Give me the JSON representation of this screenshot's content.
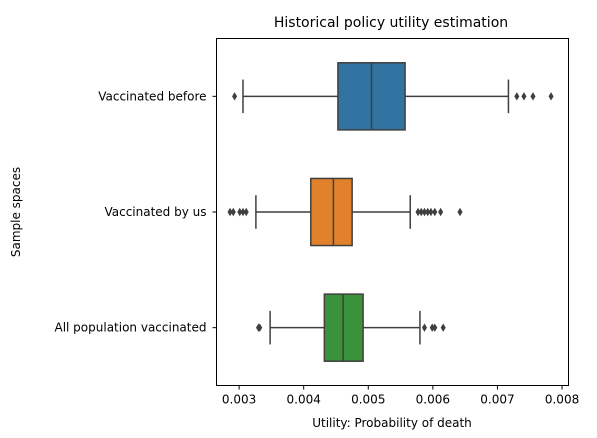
{
  "chart_data": {
    "type": "boxplot",
    "orientation": "horizontal",
    "title": "Historical policy utility estimation",
    "xlabel": "Utility: Probability of death",
    "ylabel": "Sample spaces",
    "xlim": [
      0.00265,
      0.0081
    ],
    "xticks": [
      0.003,
      0.004,
      0.005,
      0.006,
      0.007,
      0.008
    ],
    "xtick_labels": [
      "0.003",
      "0.004",
      "0.005",
      "0.006",
      "0.007",
      "0.008"
    ],
    "grid": false,
    "categories": [
      "Vaccinated before",
      "Vaccinated by us",
      "All population vaccinated"
    ],
    "boxes": [
      {
        "category": "Vaccinated before",
        "color": "#3274a1",
        "whisker_low": 0.00306,
        "q1": 0.00453,
        "median": 0.00505,
        "q3": 0.00557,
        "whisker_high": 0.00717,
        "outliers": [
          0.00293,
          0.0073,
          0.00741,
          0.00755,
          0.00783
        ]
      },
      {
        "category": "Vaccinated by us",
        "color": "#e1812c",
        "whisker_low": 0.00326,
        "q1": 0.00411,
        "median": 0.00446,
        "q3": 0.00475,
        "whisker_high": 0.00565,
        "outliers": [
          0.00286,
          0.00291,
          0.00301,
          0.00306,
          0.00311,
          0.00577,
          0.00582,
          0.00587,
          0.00592,
          0.00597,
          0.00603,
          0.00612,
          0.00642
        ]
      },
      {
        "category": "All population vaccinated",
        "color": "#3a923a",
        "whisker_low": 0.00348,
        "q1": 0.00432,
        "median": 0.00461,
        "q3": 0.00492,
        "whisker_high": 0.0058,
        "outliers": [
          0.0033,
          0.00332,
          0.00587,
          0.00599,
          0.00603,
          0.00616
        ]
      }
    ]
  }
}
